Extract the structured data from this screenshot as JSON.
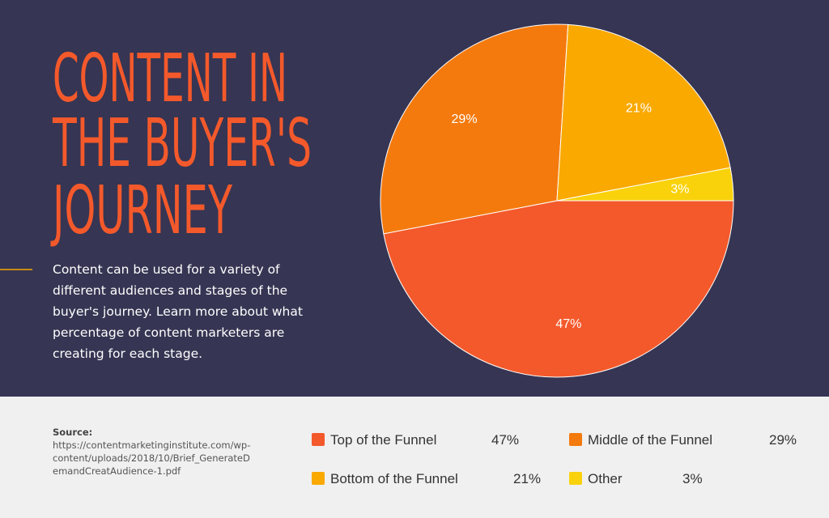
{
  "title_lines": [
    "CONTENT IN",
    "THE BUYER'S",
    "JOURNEY"
  ],
  "description": "Content can be used for a variety of different audiences and stages of the buyer's journey. Learn more about what percentage of content marketers are creating for each stage.",
  "source_label": "Source:",
  "source_url": "https://contentmarketinginstitute.com/wp-content/uploads/2018/10/Brief_GenerateDemandCreatAudience-1.pdf",
  "chart_data": {
    "type": "pie",
    "categories": [
      "Top of the Funnel",
      "Middle of the Funnel",
      "Bottom of the Funnel",
      "Other"
    ],
    "values": [
      47,
      29,
      21,
      3
    ],
    "value_labels": [
      "47%",
      "29%",
      "21%",
      "3%"
    ],
    "colors": [
      "#f4592b",
      "#f47a0e",
      "#f9a900",
      "#f9d20b"
    ]
  }
}
